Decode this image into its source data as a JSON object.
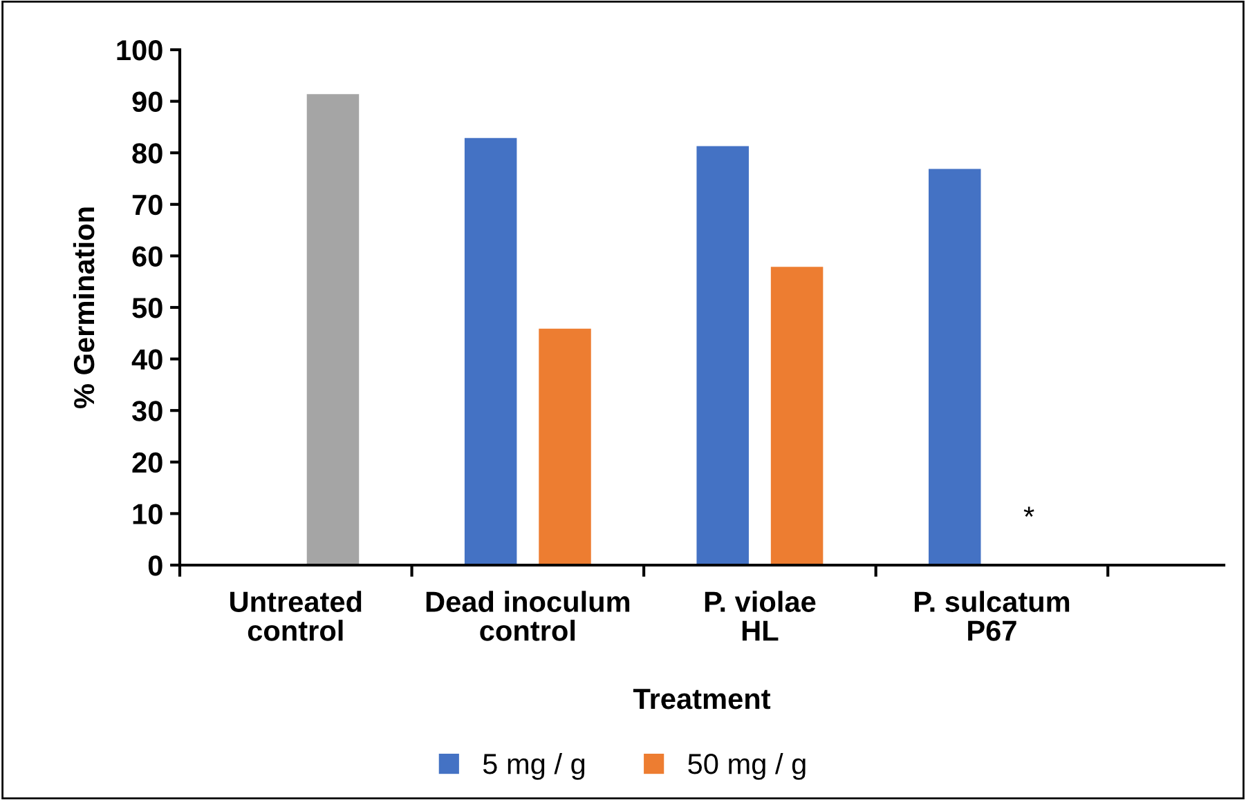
{
  "chart_data": {
    "type": "bar",
    "xlabel": "Treatment",
    "ylabel": "% Germination",
    "categories": [
      "Untreated\ncontrol",
      "Dead inoculum\ncontrol",
      "P. violae\nHL",
      "P. sulcatum\nP67"
    ],
    "series": [
      {
        "name": "5 mg / g",
        "color": "#4472c4",
        "values": [
          null,
          83,
          81.4,
          77
        ]
      },
      {
        "name": "50 mg / g",
        "color": "#ed7d31",
        "colors": [
          "#a5a5a5",
          "#ed7d31",
          "#ed7d31",
          "#ed7d31"
        ],
        "values": [
          91.5,
          46,
          58,
          null
        ]
      }
    ],
    "annotations": [
      "*"
    ],
    "ylim": [
      0,
      100
    ],
    "yticks": [
      0,
      10,
      20,
      30,
      40,
      50,
      60,
      70,
      80,
      90,
      100
    ],
    "grid": false,
    "legend": "bottom"
  }
}
